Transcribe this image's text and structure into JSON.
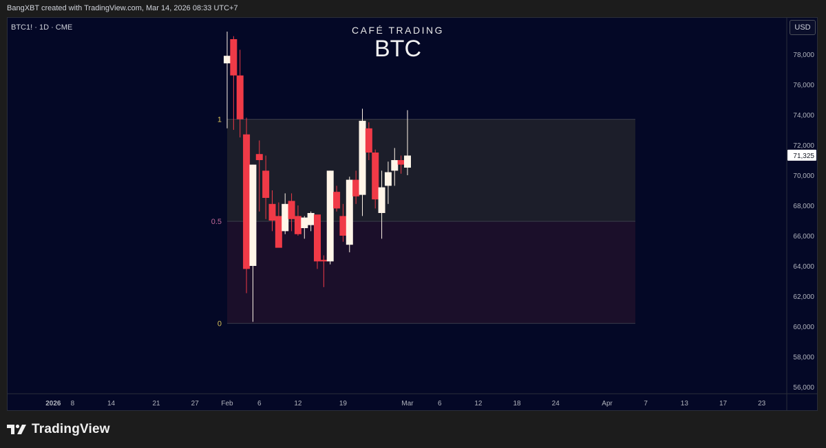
{
  "header": {
    "caption": "BangXBT created with TradingView.com, Mar 14, 2026 08:33 UTC+7"
  },
  "symbol": {
    "label": "BTC1! · 1D · CME"
  },
  "watermark": {
    "brand": "CAFÉ TRADING",
    "ticker": "BTC"
  },
  "currency": "USD",
  "footer": {
    "logo_text": "TradingView"
  },
  "colors": {
    "up": "#fff5e8",
    "down": "#f03a47",
    "background": "#040826",
    "fib_top": "#1c1e2a",
    "fib_bottom": "#1b0f2a"
  },
  "chart_data": {
    "type": "candlestick",
    "y_axis": {
      "range": [
        55000,
        80000
      ],
      "ticks": [
        "78,000",
        "76,000",
        "74,000",
        "72,000",
        "70,000",
        "68,000",
        "66,000",
        "64,000",
        "62,000",
        "60,000",
        "58,000",
        "56,000"
      ],
      "last_price": "71,325"
    },
    "x_axis": {
      "ticks": [
        {
          "label": "2026",
          "bold": true,
          "day": -27
        },
        {
          "label": "8",
          "day": -24
        },
        {
          "label": "14",
          "day": -18
        },
        {
          "label": "21",
          "day": -11
        },
        {
          "label": "27",
          "day": -5
        },
        {
          "label": "Feb",
          "day": 0
        },
        {
          "label": "6",
          "day": 5
        },
        {
          "label": "12",
          "day": 11
        },
        {
          "label": "19",
          "day": 18
        },
        {
          "label": "Mar",
          "day": 28
        },
        {
          "label": "6",
          "day": 33
        },
        {
          "label": "12",
          "day": 39
        },
        {
          "label": "18",
          "day": 45
        },
        {
          "label": "24",
          "day": 51
        },
        {
          "label": "Apr",
          "day": 59
        },
        {
          "label": "7",
          "day": 65
        },
        {
          "label": "13",
          "day": 71
        },
        {
          "label": "17",
          "day": 77
        },
        {
          "label": "23",
          "day": 83
        }
      ]
    },
    "fib_levels": [
      {
        "label": "1",
        "value": 73700
      },
      {
        "label": "0.5",
        "value": 66950
      },
      {
        "label": "0",
        "value": 60200
      }
    ],
    "candles": [
      {
        "day": 0,
        "o": 77400,
        "h": 79500,
        "l": 73100,
        "c": 77900
      },
      {
        "day": 1,
        "o": 79000,
        "h": 79200,
        "l": 73000,
        "c": 76600
      },
      {
        "day": 2,
        "o": 76600,
        "h": 78300,
        "l": 72500,
        "c": 73700
      },
      {
        "day": 3,
        "o": 72700,
        "h": 73800,
        "l": 62200,
        "c": 63800
      },
      {
        "day": 4,
        "o": 64000,
        "h": 70700,
        "l": 60300,
        "c": 70700
      },
      {
        "day": 5,
        "o": 71400,
        "h": 72300,
        "l": 67600,
        "c": 71000
      },
      {
        "day": 6,
        "o": 70300,
        "h": 71300,
        "l": 67100,
        "c": 68500
      },
      {
        "day": 7,
        "o": 68100,
        "h": 69000,
        "l": 66300,
        "c": 67000
      },
      {
        "day": 8,
        "o": 67300,
        "h": 68200,
        "l": 65400,
        "c": 65200
      },
      {
        "day": 9,
        "o": 66300,
        "h": 68800,
        "l": 66100,
        "c": 68100
      },
      {
        "day": 10,
        "o": 68300,
        "h": 68800,
        "l": 66300,
        "c": 67100
      },
      {
        "day": 11,
        "o": 67300,
        "h": 68000,
        "l": 66000,
        "c": 66100
      },
      {
        "day": 12,
        "o": 66500,
        "h": 67300,
        "l": 65800,
        "c": 67200
      },
      {
        "day": 13,
        "o": 66700,
        "h": 67600,
        "l": 66300,
        "c": 67500
      },
      {
        "day": 14,
        "o": 67400,
        "h": 67300,
        "l": 63800,
        "c": 64300
      },
      {
        "day": 15,
        "o": 64400,
        "h": 64700,
        "l": 62600,
        "c": 64300
      },
      {
        "day": 16,
        "o": 64300,
        "h": 70300,
        "l": 64100,
        "c": 70300
      },
      {
        "day": 17,
        "o": 68900,
        "h": 69300,
        "l": 67600,
        "c": 67800
      },
      {
        "day": 18,
        "o": 67300,
        "h": 68100,
        "l": 65600,
        "c": 66000
      },
      {
        "day": 19,
        "o": 65400,
        "h": 69900,
        "l": 64900,
        "c": 69700
      },
      {
        "day": 20,
        "o": 69700,
        "h": 70300,
        "l": 68100,
        "c": 68600
      },
      {
        "day": 21,
        "o": 68700,
        "h": 74400,
        "l": 67300,
        "c": 73600
      },
      {
        "day": 22,
        "o": 73100,
        "h": 73500,
        "l": 71000,
        "c": 71500
      },
      {
        "day": 23,
        "o": 71500,
        "h": 71700,
        "l": 67800,
        "c": 68400
      },
      {
        "day": 24,
        "o": 67500,
        "h": 70300,
        "l": 65800,
        "c": 69200
      },
      {
        "day": 25,
        "o": 69300,
        "h": 70900,
        "l": 68100,
        "c": 70200
      },
      {
        "day": 26,
        "o": 70300,
        "h": 71800,
        "l": 69300,
        "c": 71000
      },
      {
        "day": 27,
        "o": 71000,
        "h": 71300,
        "l": 70100,
        "c": 70700
      },
      {
        "day": 28,
        "o": 70500,
        "h": 74300,
        "l": 70000,
        "c": 71300
      }
    ]
  }
}
